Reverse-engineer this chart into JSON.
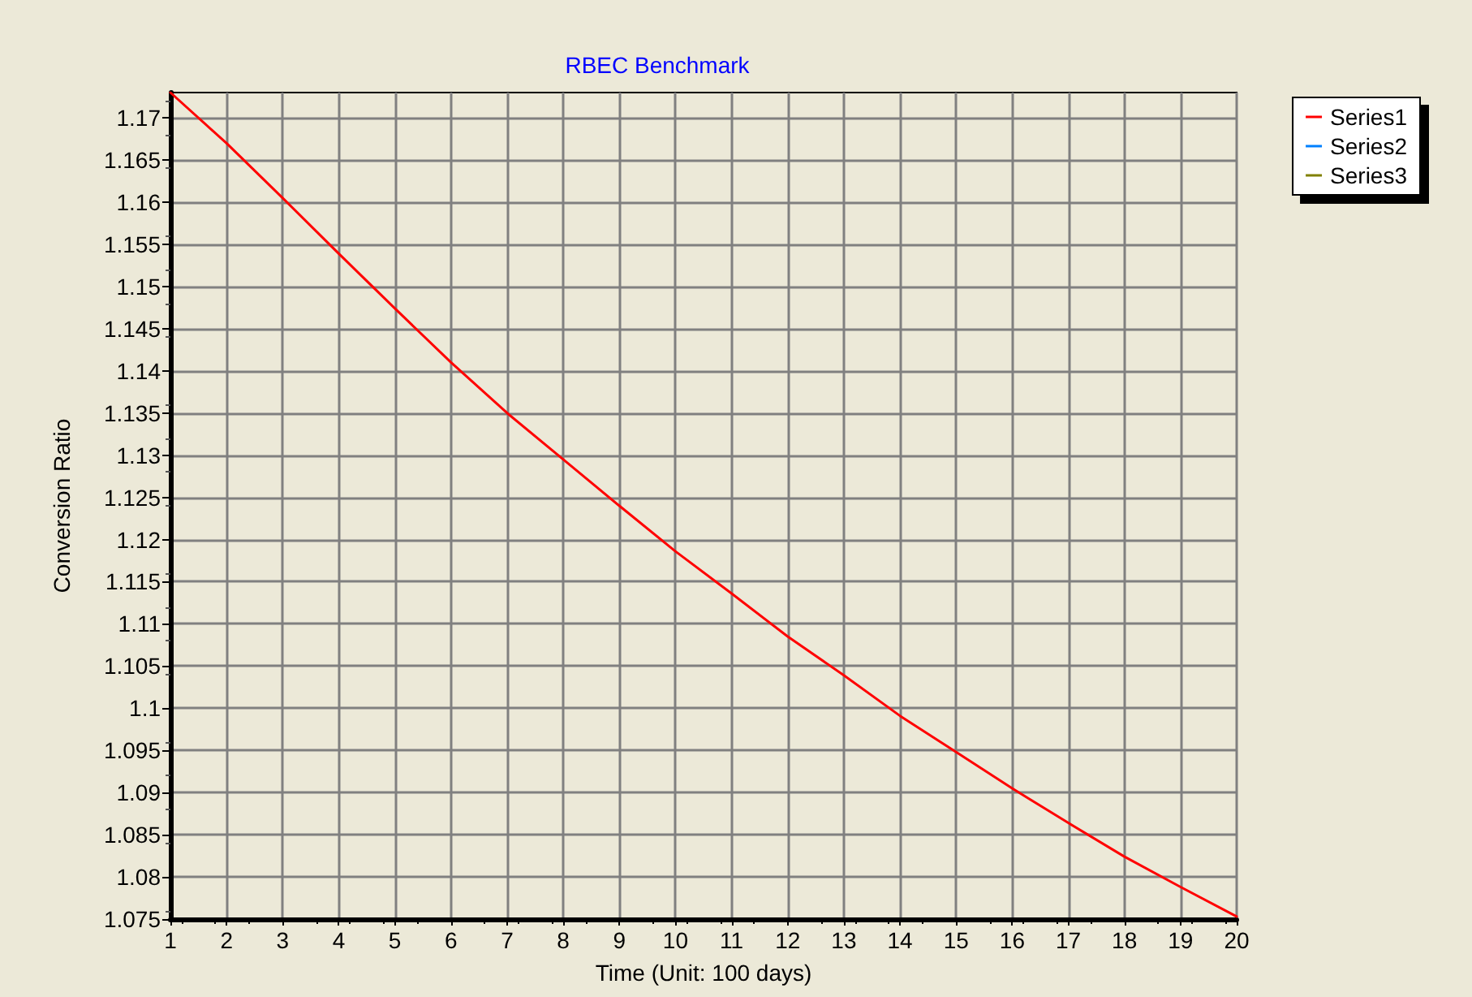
{
  "chart_data": {
    "type": "line",
    "title": "RBEC Benchmark",
    "xlabel": "Time (Unit: 100 days)",
    "ylabel": "Conversion Ratio",
    "x": [
      1,
      2,
      3,
      4,
      5,
      6,
      7,
      8,
      9,
      10,
      11,
      12,
      13,
      14,
      15,
      16,
      17,
      18,
      19,
      20
    ],
    "series": [
      {
        "name": "Series1",
        "color": "#ff0000",
        "values": [
          1.173,
          1.167,
          1.1605,
          1.1539,
          1.1474,
          1.141,
          1.135,
          1.1295,
          1.124,
          1.1186,
          1.1136,
          1.1085,
          1.1039,
          1.0991,
          1.0948,
          1.0905,
          1.0864,
          1.0824,
          1.0788,
          1.0753
        ]
      },
      {
        "name": "Series2",
        "color": "#0080ff",
        "values": [
          null,
          null,
          null,
          null,
          null,
          null,
          null,
          null,
          null,
          null,
          null,
          null,
          null,
          null,
          null,
          null,
          null,
          null,
          null,
          null
        ]
      },
      {
        "name": "Series3",
        "color": "#808000",
        "values": [
          null,
          null,
          null,
          null,
          null,
          null,
          null,
          null,
          null,
          null,
          null,
          null,
          null,
          null,
          null,
          null,
          null,
          null,
          null,
          null
        ]
      }
    ],
    "xlim": [
      1,
      20
    ],
    "xticks": [
      1,
      2,
      3,
      4,
      5,
      6,
      7,
      8,
      9,
      10,
      11,
      12,
      13,
      14,
      15,
      16,
      17,
      18,
      19,
      20
    ],
    "ylim": [
      1.075,
      1.173
    ],
    "yticks": [
      1.075,
      1.08,
      1.085,
      1.09,
      1.095,
      1.1,
      1.105,
      1.11,
      1.115,
      1.12,
      1.125,
      1.13,
      1.135,
      1.14,
      1.145,
      1.15,
      1.155,
      1.16,
      1.165,
      1.17
    ],
    "grid": true,
    "legend": "top right",
    "marker": "none",
    "line_style": "solid"
  }
}
